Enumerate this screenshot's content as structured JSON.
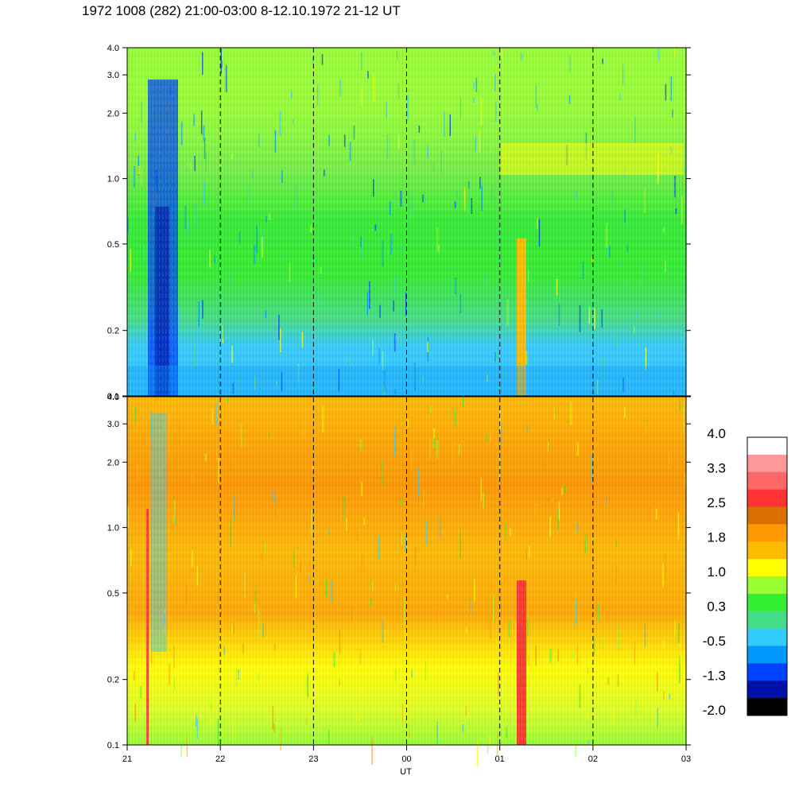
{
  "title": "1972 1008 (282) 21:00-03:00 8-12.10.1972  21-12 UT",
  "chart_data": {
    "type": "heatmap",
    "panels": [
      {
        "name": "",
        "y_scale": "log",
        "ylim": [
          0.1,
          4.0
        ],
        "y_ticks": [
          "0.1",
          "0.2",
          "0.5",
          "1.0",
          "2.0",
          "3.0",
          "4.0"
        ],
        "y_tick_values": [
          0.1,
          0.2,
          0.5,
          1.0,
          2.0,
          3.0,
          4.0
        ]
      },
      {
        "name": "",
        "y_scale": "log",
        "ylim": [
          0.1,
          4.0
        ],
        "y_ticks": [
          "0.1",
          "0.2",
          "0.5",
          "1.0",
          "2.0",
          "3.0",
          "4.0"
        ],
        "y_tick_values": [
          0.1,
          0.2,
          0.5,
          1.0,
          2.0,
          3.0,
          4.0
        ]
      }
    ],
    "x_ticks": [
      "21",
      "22",
      "23",
      "00",
      "01",
      "02",
      "03"
    ],
    "xlabel": "UT",
    "ylabel": "",
    "grid": "dashed vertical lines at each hour",
    "colorbar": {
      "labels": [
        "4.0",
        "3.3",
        "2.5",
        "1.8",
        "1.0",
        "0.3",
        "-0.5",
        "-1.3",
        "-2.0"
      ],
      "colors": [
        "#ffffff",
        "#ff9999",
        "#ff6666",
        "#ff3333",
        "#d97000",
        "#ff9900",
        "#ffbb00",
        "#ffff00",
        "#99ff33",
        "#33ee33",
        "#44dd88",
        "#33ccff",
        "#0099ff",
        "#0044ff",
        "#0011aa",
        "#000000"
      ]
    },
    "colors": {
      "background_top": "#33ccff",
      "background_bottom": "#ffbb00"
    }
  }
}
